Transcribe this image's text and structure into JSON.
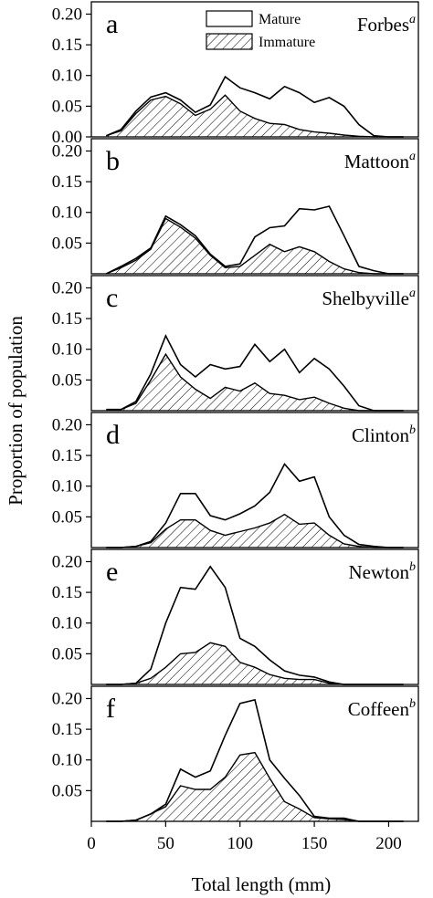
{
  "figure": {
    "xlabel": "Total length (mm)",
    "ylabel": "Proportion of population",
    "legend": {
      "mature": "Mature",
      "immature": "Immature"
    }
  },
  "chart_data": {
    "type": "area",
    "xlabel": "Total length (mm)",
    "ylabel": "Proportion of population",
    "xlim": [
      0,
      220
    ],
    "ylim": [
      0,
      0.22
    ],
    "xticks": [
      "0",
      "50",
      "100",
      "150",
      "200"
    ],
    "yticks": [
      "0.00",
      "0.05",
      "0.10",
      "0.15",
      "0.20"
    ],
    "grid": false,
    "legend_position": "top-center",
    "series_style": {
      "Mature": "outline",
      "Immature": "hatched"
    },
    "x": [
      10,
      20,
      30,
      40,
      50,
      60,
      70,
      80,
      90,
      100,
      110,
      120,
      130,
      140,
      150,
      160,
      170,
      180,
      190,
      200,
      210
    ],
    "panels": [
      {
        "letter": "a",
        "site": "Forbes",
        "superscript": "a",
        "series": [
          {
            "name": "Mature",
            "values": [
              0.002,
              0.012,
              0.042,
              0.065,
              0.072,
              0.06,
              0.04,
              0.052,
              0.098,
              0.08,
              0.072,
              0.062,
              0.082,
              0.072,
              0.056,
              0.064,
              0.05,
              0.02,
              0.002,
              0.0,
              0.0
            ]
          },
          {
            "name": "Immature",
            "values": [
              0.002,
              0.01,
              0.038,
              0.06,
              0.066,
              0.054,
              0.035,
              0.045,
              0.068,
              0.042,
              0.03,
              0.022,
              0.02,
              0.012,
              0.008,
              0.006,
              0.003,
              0.001,
              0.0,
              0.0,
              0.0
            ]
          }
        ]
      },
      {
        "letter": "b",
        "site": "Mattoon",
        "superscript": "a",
        "series": [
          {
            "name": "Mature",
            "values": [
              0.0,
              0.012,
              0.025,
              0.042,
              0.094,
              0.08,
              0.062,
              0.032,
              0.012,
              0.016,
              0.06,
              0.075,
              0.078,
              0.106,
              0.104,
              0.11,
              0.062,
              0.012,
              0.005,
              0.0,
              0.0
            ]
          },
          {
            "name": "Immature",
            "values": [
              0.0,
              0.01,
              0.022,
              0.04,
              0.09,
              0.076,
              0.058,
              0.03,
              0.01,
              0.012,
              0.03,
              0.048,
              0.036,
              0.044,
              0.036,
              0.02,
              0.008,
              0.002,
              0.0,
              0.0,
              0.0
            ]
          }
        ]
      },
      {
        "letter": "c",
        "site": "Shelbyville",
        "superscript": "a",
        "series": [
          {
            "name": "Mature",
            "values": [
              0.002,
              0.002,
              0.015,
              0.06,
              0.122,
              0.075,
              0.055,
              0.075,
              0.068,
              0.072,
              0.108,
              0.08,
              0.1,
              0.062,
              0.085,
              0.068,
              0.04,
              0.008,
              0.0,
              0.0,
              0.0
            ]
          },
          {
            "name": "Immature",
            "values": [
              0.001,
              0.002,
              0.012,
              0.05,
              0.092,
              0.055,
              0.035,
              0.02,
              0.038,
              0.032,
              0.045,
              0.028,
              0.025,
              0.018,
              0.022,
              0.012,
              0.004,
              0.0,
              0.0,
              0.0,
              0.0
            ]
          }
        ]
      },
      {
        "letter": "d",
        "site": "Clinton",
        "superscript": "b",
        "series": [
          {
            "name": "Mature",
            "values": [
              0.0,
              0.0,
              0.002,
              0.01,
              0.04,
              0.088,
              0.088,
              0.052,
              0.045,
              0.055,
              0.068,
              0.09,
              0.136,
              0.108,
              0.115,
              0.05,
              0.02,
              0.005,
              0.002,
              0.0,
              0.0
            ]
          },
          {
            "name": "Immature",
            "values": [
              0.0,
              0.0,
              0.002,
              0.008,
              0.03,
              0.045,
              0.045,
              0.028,
              0.02,
              0.026,
              0.032,
              0.04,
              0.054,
              0.038,
              0.04,
              0.02,
              0.006,
              0.002,
              0.0,
              0.0,
              0.0
            ]
          }
        ]
      },
      {
        "letter": "e",
        "site": "Newton",
        "superscript": "b",
        "series": [
          {
            "name": "Mature",
            "values": [
              0.0,
              0.0,
              0.002,
              0.025,
              0.1,
              0.158,
              0.155,
              0.192,
              0.158,
              0.075,
              0.062,
              0.04,
              0.022,
              0.015,
              0.012,
              0.004,
              0.0,
              0.0,
              0.0,
              0.0,
              0.0
            ]
          },
          {
            "name": "Immature",
            "values": [
              0.0,
              0.0,
              0.002,
              0.01,
              0.028,
              0.05,
              0.052,
              0.068,
              0.062,
              0.036,
              0.028,
              0.016,
              0.01,
              0.008,
              0.008,
              0.002,
              0.0,
              0.0,
              0.0,
              0.0,
              0.0
            ]
          }
        ]
      },
      {
        "letter": "f",
        "site": "Coffeen",
        "superscript": "b",
        "series": [
          {
            "name": "Mature",
            "values": [
              0.0,
              0.0,
              0.002,
              0.012,
              0.028,
              0.085,
              0.072,
              0.082,
              0.14,
              0.192,
              0.198,
              0.1,
              0.07,
              0.042,
              0.008,
              0.005,
              0.005,
              0.0,
              0.0,
              0.0,
              0.0
            ]
          },
          {
            "name": "Immature",
            "values": [
              0.0,
              0.0,
              0.002,
              0.012,
              0.024,
              0.058,
              0.052,
              0.052,
              0.072,
              0.108,
              0.112,
              0.07,
              0.032,
              0.02,
              0.006,
              0.004,
              0.003,
              0.0,
              0.0,
              0.0,
              0.0
            ]
          }
        ]
      }
    ]
  }
}
